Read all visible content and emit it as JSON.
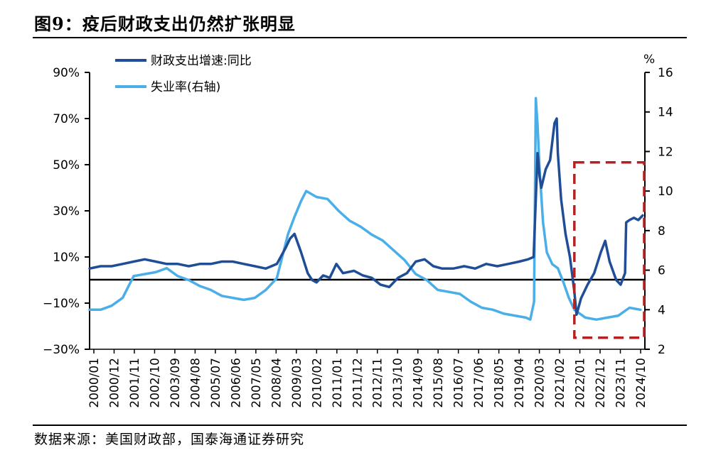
{
  "header": {
    "title": "图9：疫后财政支出仍然扩张明显"
  },
  "footer": {
    "source": "数据来源：美国财政部，国泰海通证券研究"
  },
  "colors": {
    "spending": "#1f4e96",
    "unemployment": "#4aaee8",
    "highlight": "#b22222"
  },
  "chart_data": {
    "type": "line",
    "title": "",
    "x_labels": [
      "2000/01",
      "2000/12",
      "2001/11",
      "2002/10",
      "2003/09",
      "2004/08",
      "2005/07",
      "2006/06",
      "2007/05",
      "2008/04",
      "2009/03",
      "2010/02",
      "2011/01",
      "2011/12",
      "2012/11",
      "2013/10",
      "2014/09",
      "2015/08",
      "2016/07",
      "2017/06",
      "2018/05",
      "2019/04",
      "2020/03",
      "2021/02",
      "2022/01",
      "2022/12",
      "2023/11",
      "2024/10"
    ],
    "y_left": {
      "ticks": [
        "90%",
        "70%",
        "50%",
        "30%",
        "10%",
        "−10%",
        "−30%"
      ],
      "range": [
        -30,
        90
      ]
    },
    "y_right": {
      "unit": "%",
      "ticks": [
        "16",
        "14",
        "12",
        "10",
        "8",
        "6",
        "4",
        "2"
      ],
      "range": [
        2,
        16
      ]
    },
    "legend": {
      "placement": "top-left"
    },
    "highlight_box": {
      "x_start": "2022/01",
      "x_end": "2025/03",
      "y_left_range": [
        -25,
        51
      ]
    },
    "series": [
      {
        "name": "财政支出增速:同比",
        "axis": "left",
        "x": [
          2000.0,
          2000.5,
          2001.0,
          2001.5,
          2002.0,
          2002.5,
          2003.0,
          2003.5,
          2004.0,
          2004.5,
          2005.0,
          2005.5,
          2006.0,
          2006.5,
          2007.0,
          2007.5,
          2008.0,
          2008.5,
          2008.9,
          2009.1,
          2009.3,
          2009.6,
          2009.9,
          2010.1,
          2010.3,
          2010.6,
          2010.9,
          2011.2,
          2011.5,
          2012.0,
          2012.4,
          2012.8,
          2013.2,
          2013.6,
          2014.0,
          2014.4,
          2014.8,
          2015.2,
          2015.6,
          2016.0,
          2016.5,
          2017.0,
          2017.5,
          2018.0,
          2018.5,
          2019.0,
          2019.5,
          2019.9,
          2020.15,
          2020.25,
          2020.33,
          2020.42,
          2020.5,
          2020.7,
          2020.9,
          2021.1,
          2021.2,
          2021.25,
          2021.4,
          2021.6,
          2021.8,
          2022.0,
          2022.1,
          2022.3,
          2022.6,
          2022.9,
          2023.2,
          2023.4,
          2023.6,
          2023.9,
          2024.1,
          2024.3,
          2024.35,
          2024.5,
          2024.7,
          2024.9,
          2025.1
        ],
        "y": [
          5,
          6,
          6,
          7,
          8,
          9,
          8,
          7,
          7,
          6,
          7,
          7,
          8,
          8,
          7,
          6,
          5,
          7,
          14,
          18,
          20,
          12,
          3,
          0,
          -1,
          2,
          1,
          7,
          3,
          4,
          2,
          1,
          -2,
          -3,
          1,
          3,
          8,
          9,
          6,
          5,
          5,
          6,
          5,
          7,
          6,
          7,
          8,
          9,
          10,
          35,
          55,
          45,
          40,
          48,
          52,
          68,
          70,
          55,
          35,
          20,
          10,
          -5,
          -15,
          -8,
          -2,
          3,
          12,
          17,
          8,
          0,
          -2,
          3,
          25,
          26,
          27,
          26,
          28
        ]
      },
      {
        "name": "失业率(右轴)",
        "axis": "right",
        "x": [
          2000.0,
          2000.5,
          2001.0,
          2001.5,
          2002.0,
          2002.5,
          2003.0,
          2003.5,
          2004.0,
          2004.5,
          2005.0,
          2005.5,
          2006.0,
          2006.5,
          2007.0,
          2007.5,
          2008.0,
          2008.5,
          2009.0,
          2009.3,
          2009.6,
          2009.83,
          2010.3,
          2010.8,
          2011.3,
          2011.8,
          2012.3,
          2012.8,
          2013.3,
          2013.8,
          2014.3,
          2014.8,
          2015.3,
          2015.8,
          2016.3,
          2016.8,
          2017.3,
          2017.8,
          2018.3,
          2018.8,
          2019.3,
          2019.8,
          2020.0,
          2020.17,
          2020.25,
          2020.33,
          2020.42,
          2020.58,
          2020.75,
          2021.0,
          2021.25,
          2021.5,
          2021.75,
          2022.0,
          2022.5,
          2023.0,
          2023.5,
          2024.0,
          2024.5,
          2025.0
        ],
        "y": [
          4.0,
          4.0,
          4.2,
          4.6,
          5.7,
          5.8,
          5.9,
          6.1,
          5.7,
          5.5,
          5.2,
          5.0,
          4.7,
          4.6,
          4.5,
          4.6,
          5.0,
          5.6,
          7.8,
          8.7,
          9.5,
          10.0,
          9.7,
          9.6,
          9.0,
          8.5,
          8.2,
          7.8,
          7.5,
          7.0,
          6.5,
          5.8,
          5.5,
          5.0,
          4.9,
          4.8,
          4.4,
          4.1,
          4.0,
          3.8,
          3.7,
          3.6,
          3.5,
          4.4,
          14.7,
          13.3,
          11.1,
          8.4,
          6.9,
          6.3,
          6.1,
          5.4,
          4.6,
          4.0,
          3.6,
          3.5,
          3.6,
          3.7,
          4.1,
          4.0
        ]
      }
    ]
  }
}
